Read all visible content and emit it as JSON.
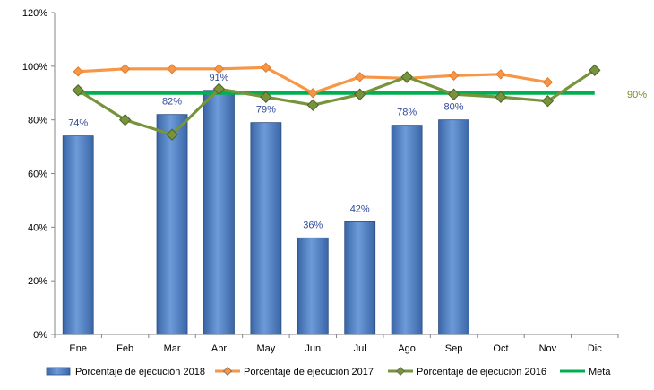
{
  "chart_data": {
    "type": "bar",
    "categories": [
      "Ene",
      "Feb",
      "Mar",
      "Abr",
      "May",
      "Jun",
      "Jul",
      "Ago",
      "Sep",
      "Oct",
      "Nov",
      "Dic"
    ],
    "ylim": [
      0,
      120
    ],
    "yticks": [
      "0%",
      "20%",
      "40%",
      "60%",
      "80%",
      "100%",
      "120%"
    ],
    "grid": false,
    "legend_position": "bottom",
    "series": [
      {
        "name": "Porcentaje de ejecución 2018",
        "kind": "bar",
        "color": "#4f81bd",
        "values": [
          74,
          null,
          82,
          91,
          79,
          36,
          42,
          78,
          80,
          null,
          null,
          null
        ],
        "labels": [
          "74%",
          "",
          "82%",
          "91%",
          "79%",
          "36%",
          "42%",
          "78%",
          "80%",
          "",
          "",
          ""
        ]
      },
      {
        "name": "Porcentaje de ejecución 2017",
        "kind": "line",
        "color": "#f79646",
        "values": [
          98,
          99,
          99,
          99,
          99.5,
          90,
          96,
          95.5,
          96.5,
          97,
          94,
          null
        ]
      },
      {
        "name": "Porcentaje de ejecución 2016",
        "kind": "line",
        "color": "#77933c",
        "values": [
          91,
          80,
          74.5,
          91.5,
          88.5,
          85.5,
          89.5,
          96,
          89.5,
          88.5,
          87,
          98.5
        ]
      },
      {
        "name": "Meta",
        "kind": "goal",
        "color": "#00b050",
        "value": 90,
        "label": "90%"
      }
    ]
  }
}
